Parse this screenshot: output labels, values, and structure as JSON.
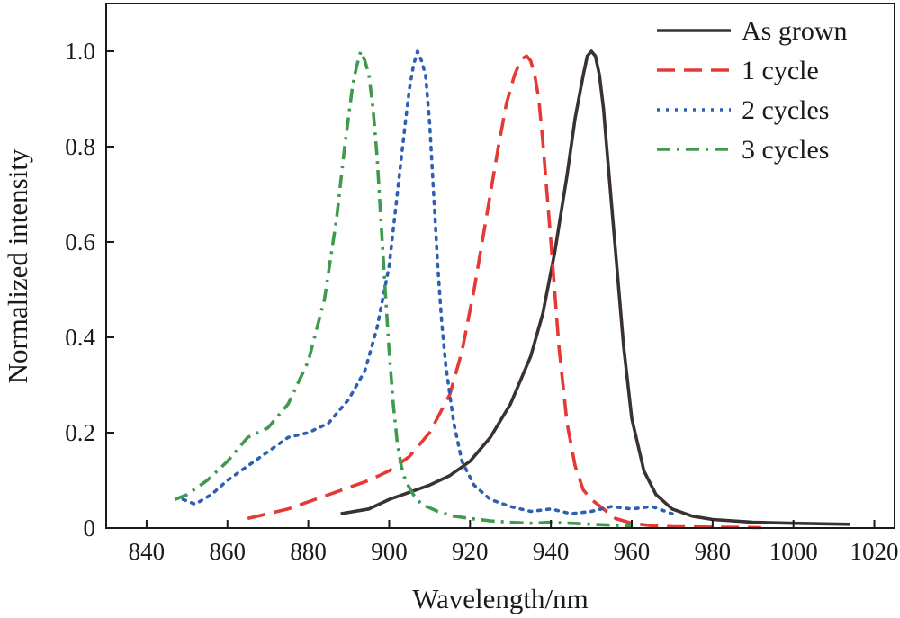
{
  "chart_data": {
    "type": "line",
    "title": "",
    "xlabel": "Wavelength/nm",
    "ylabel": "Normalized intensity",
    "xlim": [
      830,
      1025
    ],
    "ylim": [
      0,
      1.1
    ],
    "xticks": [
      840,
      860,
      880,
      900,
      920,
      940,
      960,
      980,
      1000,
      1020
    ],
    "yticks": [
      0,
      0.2,
      0.4,
      0.6,
      0.8,
      1.0
    ],
    "ytick_labels": [
      "0",
      "0.2",
      "0.4",
      "0.6",
      "0.8",
      "1.0"
    ],
    "grid": false,
    "legend_position": "top-right",
    "series": [
      {
        "name": "As grown",
        "color": "#3a3230",
        "dash": "solid",
        "x": [
          888,
          895,
          900,
          905,
          910,
          915,
          920,
          925,
          930,
          935,
          938,
          941,
          944,
          946,
          948,
          949,
          950,
          951,
          952,
          953,
          954,
          956,
          958,
          960,
          963,
          966,
          970,
          975,
          980,
          990,
          1000,
          1014
        ],
        "y": [
          0.03,
          0.04,
          0.06,
          0.075,
          0.09,
          0.11,
          0.14,
          0.19,
          0.26,
          0.36,
          0.45,
          0.58,
          0.74,
          0.86,
          0.95,
          0.99,
          1.0,
          0.99,
          0.95,
          0.88,
          0.78,
          0.58,
          0.38,
          0.23,
          0.12,
          0.07,
          0.04,
          0.025,
          0.018,
          0.012,
          0.01,
          0.008
        ]
      },
      {
        "name": "1 cycle",
        "color": "#e53935",
        "dash": "dashed",
        "x": [
          865,
          875,
          885,
          895,
          900,
          905,
          910,
          915,
          918,
          921,
          924,
          927,
          929,
          931,
          932,
          933,
          934,
          935,
          936,
          937,
          938,
          940,
          942,
          944,
          946,
          948,
          950,
          953,
          956,
          960,
          965,
          970,
          980,
          992
        ],
        "y": [
          0.02,
          0.04,
          0.07,
          0.1,
          0.12,
          0.15,
          0.2,
          0.28,
          0.37,
          0.5,
          0.65,
          0.8,
          0.89,
          0.95,
          0.97,
          0.985,
          0.99,
          0.98,
          0.95,
          0.9,
          0.81,
          0.6,
          0.38,
          0.22,
          0.13,
          0.08,
          0.06,
          0.04,
          0.02,
          0.01,
          0.005,
          0.003,
          0.002,
          0.001
        ]
      },
      {
        "name": "2 cycles",
        "color": "#2f5fb3",
        "dash": "dotted",
        "x": [
          849,
          852,
          856,
          860,
          865,
          870,
          875,
          880,
          885,
          890,
          894,
          897,
          900,
          902,
          904,
          905,
          906,
          907,
          908,
          909,
          910,
          911,
          912,
          913,
          914,
          916,
          918,
          921,
          925,
          930,
          935,
          940,
          945,
          950,
          955,
          960,
          965,
          970
        ],
        "y": [
          0.06,
          0.05,
          0.07,
          0.1,
          0.13,
          0.16,
          0.19,
          0.2,
          0.22,
          0.27,
          0.33,
          0.42,
          0.55,
          0.7,
          0.85,
          0.92,
          0.97,
          1.0,
          0.98,
          0.95,
          0.85,
          0.7,
          0.55,
          0.43,
          0.34,
          0.22,
          0.14,
          0.09,
          0.06,
          0.045,
          0.035,
          0.04,
          0.03,
          0.035,
          0.045,
          0.04,
          0.045,
          0.03
        ]
      },
      {
        "name": "3 cycles",
        "color": "#3f9a4f",
        "dash": "dash-dot",
        "x": [
          847,
          850,
          855,
          860,
          865,
          870,
          875,
          880,
          884,
          887,
          889,
          891,
          892,
          893,
          894,
          895,
          896,
          897,
          898,
          899,
          900,
          901,
          902,
          903,
          904,
          906,
          908,
          912,
          916,
          920,
          925,
          930,
          935,
          940,
          945,
          950,
          955,
          960
        ],
        "y": [
          0.06,
          0.07,
          0.1,
          0.14,
          0.19,
          0.21,
          0.26,
          0.35,
          0.48,
          0.65,
          0.8,
          0.93,
          0.97,
          1.0,
          0.98,
          0.95,
          0.88,
          0.78,
          0.64,
          0.5,
          0.37,
          0.26,
          0.18,
          0.13,
          0.1,
          0.07,
          0.05,
          0.035,
          0.025,
          0.02,
          0.015,
          0.012,
          0.01,
          0.012,
          0.01,
          0.008,
          0.006,
          0.005
        ]
      }
    ]
  }
}
